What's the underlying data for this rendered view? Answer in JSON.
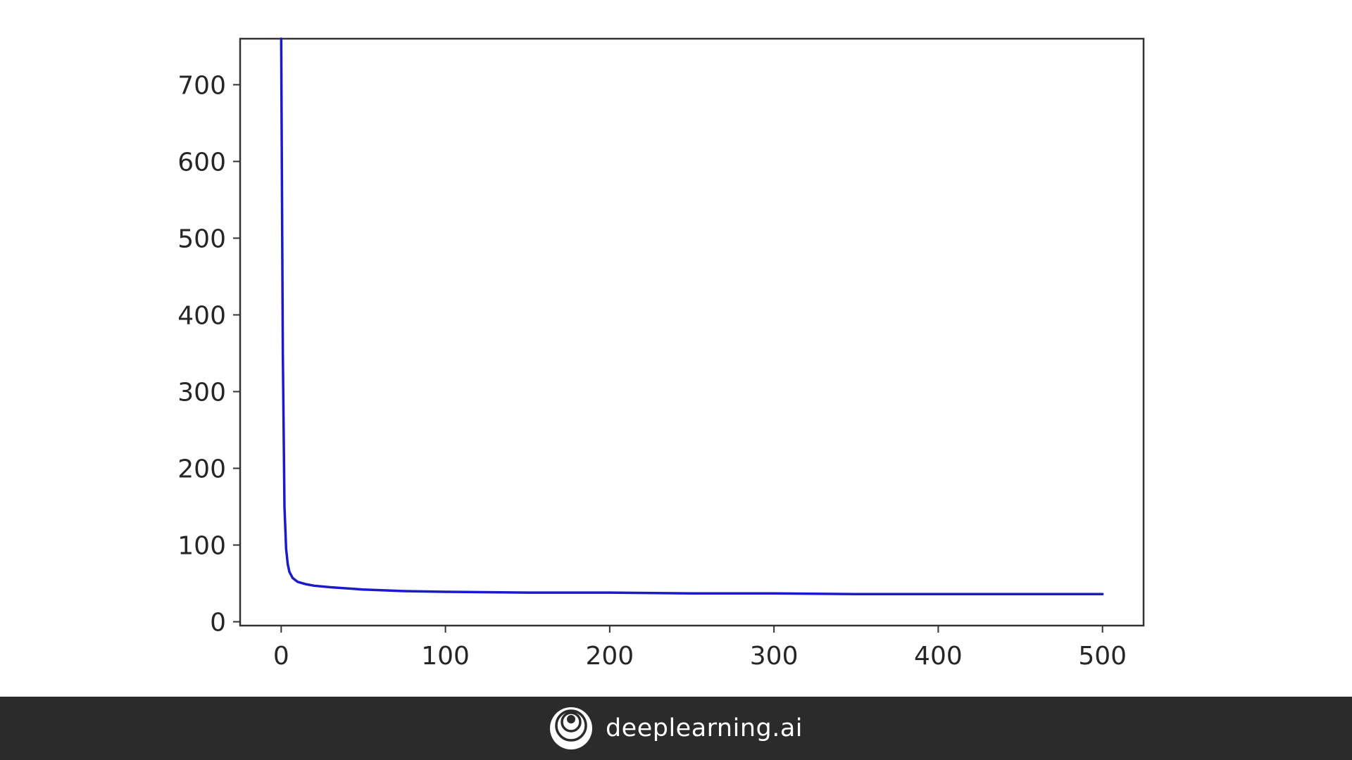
{
  "chart_data": {
    "type": "line",
    "title": "",
    "xlabel": "",
    "ylabel": "",
    "xlim": [
      -25,
      525
    ],
    "ylim": [
      -5,
      760
    ],
    "grid": false,
    "legend": "none",
    "xticks": [
      0,
      100,
      200,
      300,
      400,
      500
    ],
    "yticks": [
      0,
      100,
      200,
      300,
      400,
      500,
      600,
      700
    ],
    "line_color": "#1a1acc",
    "series": [
      {
        "x": [
          0,
          1,
          2,
          3,
          4,
          5,
          7,
          10,
          15,
          20,
          30,
          50,
          75,
          100,
          150,
          200,
          250,
          300,
          350,
          400,
          450,
          500
        ],
        "y": [
          760,
          350,
          150,
          95,
          75,
          65,
          57,
          52,
          49,
          47,
          45,
          42,
          40,
          39,
          38,
          38,
          37,
          37,
          36,
          36,
          36,
          36
        ]
      }
    ]
  },
  "footer": {
    "brand": "deeplearning.ai",
    "logo_icon": "deeplearning-logo-icon",
    "background": "#2b2b2b"
  }
}
